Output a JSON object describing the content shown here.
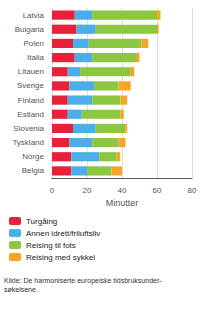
{
  "chart_data": {
    "type": "bar",
    "orientation": "horizontal",
    "stacked": true,
    "categories": [
      "Latvia",
      "Bulgaria",
      "Polen",
      "Italia",
      "Litauen",
      "Sverige",
      "Finland",
      "Estland",
      "Slovenia",
      "Tyskland",
      "Norge",
      "Belgia"
    ],
    "series": [
      {
        "name": "Turgåing",
        "color": "#e8203a",
        "values": [
          13,
          14,
          12,
          13,
          9,
          10,
          9,
          9,
          12,
          10,
          11,
          11
        ]
      },
      {
        "name": "Annen idrett/friluftsliv",
        "color": "#4baee8",
        "values": [
          10,
          11,
          9,
          10,
          7,
          14,
          14,
          8,
          13,
          13,
          16,
          9
        ]
      },
      {
        "name": "Reising til fots",
        "color": "#8dc63f",
        "values": [
          37,
          35,
          30,
          25,
          29,
          14,
          16,
          22,
          17,
          15,
          10,
          14
        ]
      },
      {
        "name": "Reising med sykkel",
        "color": "#f5a623",
        "values": [
          2,
          1,
          4,
          2,
          2,
          7,
          4,
          2,
          1,
          4,
          2,
          6
        ]
      }
    ],
    "xlabel": "Minutter",
    "xlim": [
      0,
      80
    ],
    "xticks": [
      0,
      20,
      40,
      60,
      80
    ],
    "grid": true,
    "legend": "bottom",
    "annotations": [
      "Kilde: De harmoniserte europeiske tidsbruksunder-\nsøkelsene."
    ]
  }
}
